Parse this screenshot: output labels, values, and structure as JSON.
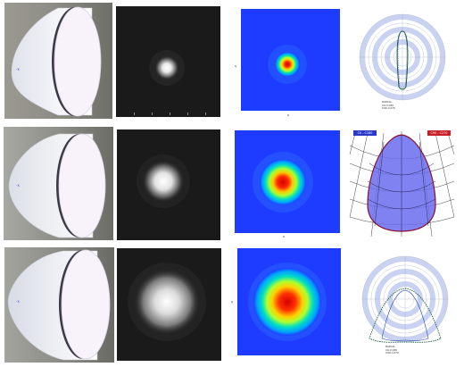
{
  "rows": [
    {
      "reflector": {
        "tag": "reflector-narrow"
      },
      "polar": {
        "lines": [
          "RADIAL",
          "C0-C180",
          "C90-C270"
        ]
      }
    },
    {
      "reflector": {
        "tag": "reflector-medium"
      },
      "polar": {
        "legend_left": "C0 - C180",
        "legend_right": "C90 - C270"
      }
    },
    {
      "reflector": {
        "tag": "reflector-wide"
      },
      "polar": {
        "lines": [
          "RADIAL",
          "C0-C180",
          "C90-C270"
        ]
      }
    }
  ],
  "colors": {
    "grey_background": "#1a1a1a",
    "false_color_background": "#1e3cff",
    "legend_blue": "#2a38c8",
    "legend_red": "#c81e28",
    "polar_ring": "#c9d2f0",
    "sidebar_dark": "#8a8a84"
  }
}
